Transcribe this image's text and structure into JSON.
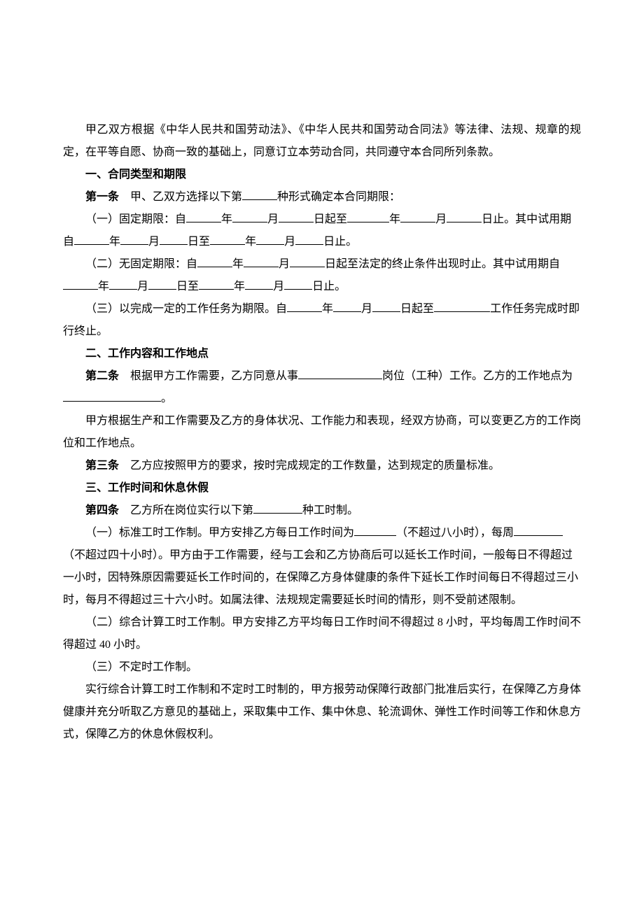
{
  "intro": "甲乙双方根据《中华人民共和国劳动法》、《中华人民共和国劳动合同法》等法律、法规、规章的规定，在平等自愿、协商一致的基础上，同意订立本劳动合同，共同遵守本合同所列条款。",
  "section1": {
    "title": "一、合同类型和期限",
    "art1_label": "第一条",
    "art1_p1_a": "甲、乙双方选择以下第",
    "art1_p1_b": "种形式确定本合同期限：",
    "art1_i1_a": "（一）固定期限：自",
    "art1_i1_b": "年",
    "art1_i1_c": "月",
    "art1_i1_d": "日起至",
    "art1_i1_e": "年",
    "art1_i1_f": "月",
    "art1_i1_g": "日止。其中试用期自",
    "art1_i1_h": "年",
    "art1_i1_i": "月",
    "art1_i1_j": "日至",
    "art1_i1_k": "年",
    "art1_i1_l": "月",
    "art1_i1_m": "日止。",
    "art1_i2_a": "（二）无固定期限：自",
    "art1_i2_b": "年",
    "art1_i2_c": "月",
    "art1_i2_d": "日起至法定的终止条件出现时止。其中试用期自",
    "art1_i2_e": "年",
    "art1_i2_f": "月",
    "art1_i2_g": "日至",
    "art1_i2_h": "年",
    "art1_i2_i": "月",
    "art1_i2_j": "日止。",
    "art1_i3_a": "（三）以完成一定的工作任务为期限。自",
    "art1_i3_b": "年",
    "art1_i3_c": "月",
    "art1_i3_d": "日起至",
    "art1_i3_e": "工作任务完成时即行终止。"
  },
  "section2": {
    "title": "二、工作内容和工作地点",
    "art2_label": "第二条",
    "art2_a": "根据甲方工作需要，乙方同意从事",
    "art2_b": "岗位（工种）工作。乙方的工作地点为",
    "art2_c": "。",
    "art2_p2": "甲方根据生产和工作需要及乙方的身体状况、工作能力和表现，经双方协商，可以变更乙方的工作岗位和工作地点。",
    "art3_label": "第三条",
    "art3_text": "乙方应按照甲方的要求，按时完成规定的工作数量，达到规定的质量标准。"
  },
  "section3": {
    "title": "三、工作时间和休息休假",
    "art4_label": "第四条",
    "art4_a": "乙方所在岗位实行以下第",
    "art4_b": "种工时制。",
    "art4_i1_a": "（一）标准工时工作制。甲方安排乙方每日工作时间为",
    "art4_i1_b": "（不超过八小时），每周",
    "art4_i1_c": "（不超过四十小时）。甲方由于工作需要，经与工会和乙方协商后可以延长工作时间，一般每日不得超过一小时，因特殊原因需要延长工作时间的，在保障乙方身体健康的条件下延长工作时间每日不得超过三小时，每月不得超过三十六小时。如属法律、法规规定需要延长时间的情形，则不受前述限制。",
    "art4_i2": "（二）综合计算工时工作制。甲方安排乙方平均每日工作时间不得超过 8 小时，平均每周工作时间不得超过 40 小时。",
    "art4_i3": "（三）不定时工作制。",
    "art4_p2": "实行综合计算工时工作制和不定时工时制的，甲方报劳动保障行政部门批准后实行，在保障乙方身体健康并充分听取乙方意见的基础上，采取集中工作、集中休息、轮流调休、弹性工作时间等工作和休息方式，保障乙方的休息休假权利。"
  }
}
